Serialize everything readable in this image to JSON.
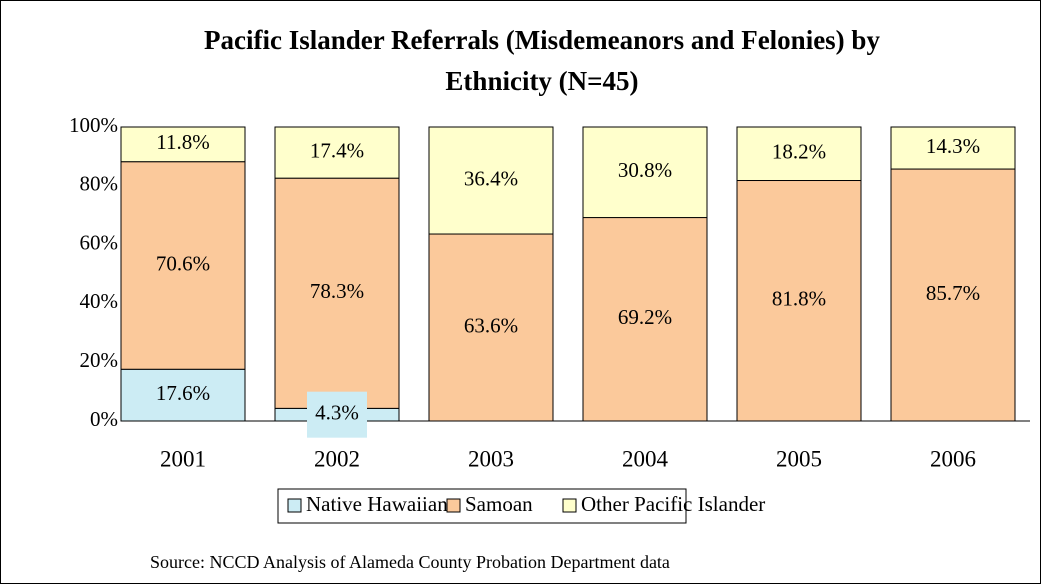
{
  "chart_data": {
    "type": "stacked_bar",
    "title": "Pacific Islander Referrals (Misdemeanors and Felonies) by",
    "subtitle": "Ethnicity (N=45)",
    "categories": [
      "2001",
      "2002",
      "2003",
      "2004",
      "2005",
      "2006"
    ],
    "series": [
      {
        "name": "Native Hawaiian",
        "color": "#ccecf4",
        "values": [
          17.6,
          4.3,
          null,
          null,
          null,
          null
        ],
        "value_labels": [
          "17.6%",
          "4.3%",
          null,
          null,
          null,
          null
        ]
      },
      {
        "name": "Samoan",
        "color": "#fbc99b",
        "values": [
          70.6,
          78.3,
          63.6,
          69.2,
          81.8,
          85.7
        ],
        "value_labels": [
          "70.6%",
          "78.3%",
          "63.6%",
          "69.2%",
          "81.8%",
          "85.7%"
        ]
      },
      {
        "name": "Other Pacific Islander",
        "color": "#ffffcc",
        "values": [
          11.8,
          17.4,
          36.4,
          30.8,
          18.2,
          14.3
        ],
        "value_labels": [
          "11.8%",
          "17.4%",
          "36.4%",
          "30.8%",
          "18.2%",
          "14.3%"
        ]
      }
    ],
    "ylim": [
      0,
      100
    ],
    "yticks": [
      {
        "value": 0,
        "label": "0%"
      },
      {
        "value": 20,
        "label": "20%"
      },
      {
        "value": 40,
        "label": "40%"
      },
      {
        "value": 60,
        "label": "60%"
      },
      {
        "value": 80,
        "label": "80%"
      },
      {
        "value": 100,
        "label": "100%"
      }
    ],
    "source": "Source: NCCD Analysis of Alameda County Probation Department data",
    "legend": "bottom"
  }
}
